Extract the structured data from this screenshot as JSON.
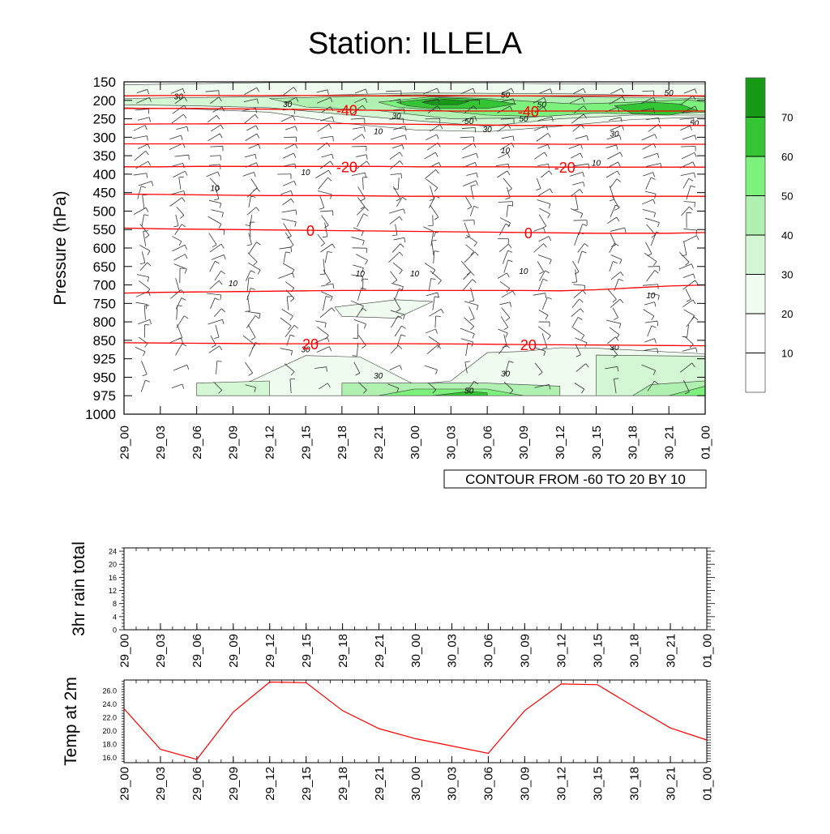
{
  "title": "Station: ILLELA",
  "time_labels": [
    "29_00",
    "29_03",
    "29_06",
    "29_09",
    "29_12",
    "29_15",
    "29_18",
    "29_21",
    "30_00",
    "30_03",
    "30_06",
    "30_09",
    "30_12",
    "30_15",
    "30_18",
    "30_21",
    "01_00"
  ],
  "colors": {
    "temp_line": "#ff0000",
    "contour_text": "#ff0000",
    "shade": [
      "#ffffff",
      "#ffffff",
      "#f0fcf0",
      "#d2f7d2",
      "#b0f0b0",
      "#7cf27c",
      "#34c534",
      "#169a16"
    ]
  },
  "chart_data": [
    {
      "type": "contour",
      "name": "upper-air time-height section",
      "ylabel": "Pressure (hPa)",
      "y_ticks": [
        150,
        200,
        250,
        300,
        350,
        400,
        450,
        500,
        550,
        600,
        650,
        700,
        750,
        800,
        850,
        925,
        950,
        975,
        1000
      ],
      "ylim": [
        1000,
        150
      ],
      "x_ticks": [
        "29_00",
        "29_03",
        "29_06",
        "29_09",
        "29_12",
        "29_15",
        "29_18",
        "29_21",
        "30_00",
        "30_03",
        "30_06",
        "30_09",
        "30_12",
        "30_15",
        "30_18",
        "30_21",
        "01_00"
      ],
      "info_label": "CONTOUR FROM -60 TO 20 BY 10",
      "colorbar": {
        "levels": [
          10,
          20,
          30,
          40,
          50,
          60,
          70
        ],
        "labels": [
          "10",
          "20",
          "30",
          "40",
          "50",
          "60",
          "70"
        ]
      },
      "temperature_contours": [
        {
          "value": -40,
          "label": "-40",
          "pressures": [
            222,
            222,
            222,
            223,
            224,
            225,
            226,
            227,
            228,
            229,
            229,
            229,
            229,
            229,
            229,
            229,
            229
          ],
          "label_times": [
            6,
            11
          ]
        },
        {
          "value": -40,
          "label": "",
          "pressures": [
            265,
            264,
            264,
            263,
            263,
            263,
            263,
            264,
            265,
            266,
            267,
            268,
            268,
            268,
            268,
            268,
            268
          ],
          "label_times": []
        },
        {
          "value": -30,
          "label": "",
          "pressures": [
            188,
            187,
            187,
            187,
            187,
            187,
            187,
            188,
            188,
            188,
            188,
            188,
            188,
            188,
            188,
            188,
            188
          ],
          "label_times": []
        },
        {
          "value": -30,
          "label": "",
          "pressures": [
            318,
            318,
            318,
            318,
            318,
            318,
            318,
            318,
            318,
            318,
            318,
            318,
            319,
            319,
            319,
            319,
            319
          ],
          "label_times": []
        },
        {
          "value": -20,
          "label": "-20",
          "pressures": [
            380,
            380,
            379,
            379,
            379,
            379,
            379,
            379,
            380,
            380,
            380,
            380,
            381,
            381,
            381,
            381,
            381
          ],
          "label_times": [
            6,
            12
          ]
        },
        {
          "value": -10,
          "label": "",
          "pressures": [
            454,
            455,
            456,
            457,
            458,
            458,
            458,
            459,
            460,
            460,
            460,
            460,
            460,
            460,
            460,
            460,
            460
          ],
          "label_times": []
        },
        {
          "value": 0,
          "label": "0",
          "pressures": [
            546,
            548,
            549,
            550,
            551,
            552,
            553,
            554,
            555,
            556,
            557,
            558,
            559,
            560,
            560,
            560,
            558
          ],
          "label_times": [
            5,
            11
          ]
        },
        {
          "value": 10,
          "label": "",
          "pressures": [
            722,
            720,
            719,
            718,
            717,
            716,
            715,
            715,
            715,
            715,
            715,
            715,
            716,
            713,
            708,
            703,
            700
          ],
          "label_times": []
        },
        {
          "value": 20,
          "label": "20",
          "pressures": [
            860,
            861,
            862,
            863,
            864,
            864,
            864,
            864,
            864,
            865,
            866,
            867,
            868,
            869,
            870,
            871,
            872
          ],
          "label_times": [
            5,
            11
          ]
        }
      ],
      "wind_speed_labels": [
        {
          "text": "30",
          "time": 1.5,
          "p": 190
        },
        {
          "text": "30",
          "time": 4.5,
          "p": 210
        },
        {
          "text": "30",
          "time": 7.5,
          "p": 242
        },
        {
          "text": "50",
          "time": 10.5,
          "p": 185
        },
        {
          "text": "50",
          "time": 11.5,
          "p": 212
        },
        {
          "text": "50",
          "time": 9.5,
          "p": 257
        },
        {
          "text": "30",
          "time": 10,
          "p": 278
        },
        {
          "text": "50",
          "time": 11,
          "p": 250
        },
        {
          "text": "30",
          "time": 13.5,
          "p": 290
        },
        {
          "text": "50",
          "time": 15,
          "p": 180
        },
        {
          "text": "50",
          "time": 15.7,
          "p": 262
        },
        {
          "text": "10",
          "time": 7,
          "p": 284
        },
        {
          "text": "10",
          "time": 10.5,
          "p": 335
        },
        {
          "text": "10",
          "time": 13,
          "p": 370
        },
        {
          "text": "10",
          "time": 5,
          "p": 395
        },
        {
          "text": "10",
          "time": 2.5,
          "p": 438
        },
        {
          "text": "10",
          "time": 6.5,
          "p": 669
        },
        {
          "text": "10",
          "time": 8,
          "p": 669
        },
        {
          "text": "10",
          "time": 11,
          "p": 663
        },
        {
          "text": "10",
          "time": 3,
          "p": 695
        },
        {
          "text": "10",
          "time": 14.5,
          "p": 728
        },
        {
          "text": "30",
          "time": 5,
          "p": 887
        },
        {
          "text": "30",
          "time": 7,
          "p": 948
        },
        {
          "text": "30",
          "time": 10.5,
          "p": 945
        },
        {
          "text": "50",
          "time": 9.5,
          "p": 968
        },
        {
          "text": "30",
          "time": 13.5,
          "p": 878
        }
      ],
      "wind_shading_regions": [
        {
          "level": 2,
          "points": [
            [
              0,
              158
            ],
            [
              4,
              152
            ],
            [
              8,
              152
            ],
            [
              12,
              155
            ],
            [
              16,
              156
            ],
            [
              16,
              245
            ],
            [
              14,
              252
            ],
            [
              12,
              270
            ],
            [
              10,
              285
            ],
            [
              8,
              280
            ],
            [
              6,
              262
            ],
            [
              4,
              232
            ],
            [
              2,
              224
            ],
            [
              0,
              220
            ]
          ]
        },
        {
          "level": 3,
          "points": [
            [
              0,
              195
            ],
            [
              4,
              190
            ],
            [
              8,
              180
            ],
            [
              12,
              182
            ],
            [
              16,
              190
            ],
            [
              16,
              240
            ],
            [
              14,
              240
            ],
            [
              12,
              250
            ],
            [
              10,
              270
            ],
            [
              8,
              255
            ],
            [
              6,
              238
            ],
            [
              4,
              220
            ],
            [
              2,
              215
            ],
            [
              0,
              212
            ]
          ]
        },
        {
          "level": 4,
          "points": [
            [
              4,
              195
            ],
            [
              8,
              185
            ],
            [
              12,
              190
            ],
            [
              16,
              195
            ],
            [
              16,
              232
            ],
            [
              13,
              230
            ],
            [
              11,
              248
            ],
            [
              9,
              250
            ],
            [
              7,
              228
            ],
            [
              5,
              218
            ]
          ]
        },
        {
          "level": 5,
          "points": [
            [
              7,
              205
            ],
            [
              8.5,
              190
            ],
            [
              10,
              195
            ],
            [
              11.5,
              205
            ],
            [
              12.5,
              210
            ],
            [
              14,
              205
            ],
            [
              15.5,
              198
            ],
            [
              16,
              205
            ],
            [
              16,
              232
            ],
            [
              14.5,
              238
            ],
            [
              13,
              234
            ],
            [
              11.5,
              244
            ],
            [
              10,
              240
            ],
            [
              8.5,
              226
            ],
            [
              7.5,
              218
            ]
          ]
        },
        {
          "level": 6,
          "points": [
            [
              7.5,
              205
            ],
            [
              8.7,
              193
            ],
            [
              10,
              198
            ],
            [
              10.8,
              210
            ],
            [
              10,
              222
            ],
            [
              8.5,
              222
            ],
            [
              7.8,
              215
            ]
          ]
        },
        {
          "level": 6,
          "points": [
            [
              13.5,
              215
            ],
            [
              14.5,
              205
            ],
            [
              15.3,
              210
            ],
            [
              15.8,
              228
            ],
            [
              15,
              240
            ],
            [
              14,
              236
            ]
          ]
        },
        {
          "level": 7,
          "points": [
            [
              8.2,
              205
            ],
            [
              8.8,
              197
            ],
            [
              9.5,
              203
            ],
            [
              9.2,
              212
            ],
            [
              8.5,
              212
            ]
          ]
        },
        {
          "level": 2,
          "points": [
            [
              5.8,
              760
            ],
            [
              7.5,
              740
            ],
            [
              8.5,
              745
            ],
            [
              7.5,
              790
            ],
            [
              6,
              785
            ]
          ]
        },
        {
          "level": 2,
          "points": [
            [
              2,
              975
            ],
            [
              3.5,
              955
            ],
            [
              5,
              912
            ],
            [
              6.5,
              918
            ],
            [
              8,
              960
            ],
            [
              9,
              955
            ],
            [
              10,
              900
            ],
            [
              11,
              895
            ],
            [
              12,
              880
            ],
            [
              13,
              882
            ],
            [
              16,
              905
            ],
            [
              16,
              975
            ],
            [
              2,
              975
            ]
          ]
        },
        {
          "level": 3,
          "points": [
            [
              2,
              975
            ],
            [
              2,
              958
            ],
            [
              4,
              955
            ],
            [
              4,
              975
            ]
          ]
        },
        {
          "level": 3,
          "points": [
            [
              13,
              910
            ],
            [
              16,
              915
            ],
            [
              16,
              975
            ],
            [
              13,
              975
            ]
          ]
        },
        {
          "level": 4,
          "points": [
            [
              6,
              975
            ],
            [
              6,
              958
            ],
            [
              10,
              958
            ],
            [
              12,
              962
            ],
            [
              12,
              975
            ]
          ]
        },
        {
          "level": 4,
          "points": [
            [
              14,
              975
            ],
            [
              14.5,
              960
            ],
            [
              16,
              955
            ],
            [
              16,
              975
            ]
          ]
        },
        {
          "level": 5,
          "points": [
            [
              7,
              975
            ],
            [
              8,
              966
            ],
            [
              10,
              966
            ],
            [
              11,
              975
            ]
          ]
        },
        {
          "level": 5,
          "points": [
            [
              15,
              975
            ],
            [
              16,
              962
            ],
            [
              16,
              975
            ]
          ]
        },
        {
          "level": 6,
          "points": [
            [
              8.5,
              975
            ],
            [
              9.5,
              969
            ],
            [
              10,
              971
            ],
            [
              10,
              975
            ]
          ]
        }
      ],
      "wind_barb_rows_hpa": [
        175,
        200,
        225,
        250,
        275,
        300,
        325,
        350,
        375,
        400,
        425,
        450,
        475,
        500,
        525,
        550,
        575,
        600,
        625,
        650,
        675,
        700,
        725,
        750,
        775,
        800,
        825,
        850,
        887,
        937,
        962
      ]
    },
    {
      "type": "bar",
      "name": "3hr rain total",
      "ylabel": "3hr rain total",
      "categories": [
        "29_00",
        "29_03",
        "29_06",
        "29_09",
        "29_12",
        "29_15",
        "29_18",
        "29_21",
        "30_00",
        "30_03",
        "30_06",
        "30_09",
        "30_12",
        "30_15",
        "30_18",
        "30_21",
        "01_00"
      ],
      "values": [
        0,
        0,
        0,
        0,
        0,
        0,
        0,
        0,
        0,
        0,
        0,
        0,
        0,
        0,
        0,
        0,
        0
      ],
      "ylim": [
        0,
        25
      ],
      "y_ticks": [
        0,
        4,
        8,
        12,
        16,
        20,
        24
      ]
    },
    {
      "type": "line",
      "name": "Temp at 2m",
      "ylabel": "Temp at 2m",
      "x": [
        "29_00",
        "29_03",
        "29_06",
        "29_09",
        "29_12",
        "29_15",
        "29_18",
        "29_21",
        "30_00",
        "30_03",
        "30_06",
        "30_09",
        "30_12",
        "30_15",
        "30_18",
        "30_21",
        "01_00"
      ],
      "values": [
        23.3,
        17.2,
        15.7,
        22.8,
        27.3,
        27.2,
        23.0,
        20.3,
        18.8,
        17.7,
        16.6,
        23.0,
        27.0,
        26.9,
        23.6,
        20.4,
        18.6
      ],
      "ylim": [
        15.2,
        27.6
      ],
      "y_ticks": [
        16.0,
        18.0,
        20.0,
        22.0,
        24.0,
        26.0
      ],
      "y_tick_labels": [
        "16.0",
        "18.0",
        "20.0",
        "22.0",
        "24.0",
        "26.0"
      ]
    }
  ]
}
